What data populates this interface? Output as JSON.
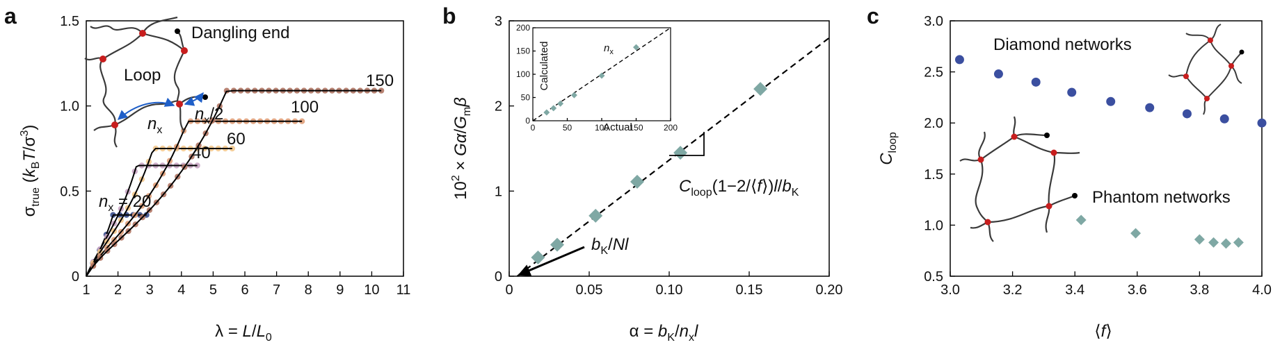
{
  "panels": {
    "a": {
      "letter": "a"
    },
    "b": {
      "letter": "b"
    },
    "c": {
      "letter": "c"
    }
  },
  "chart_data": [
    {
      "type": "line",
      "panel": "a",
      "xlabel": "λ = L/L0",
      "ylabel": "σtrue (kBT/σ³)",
      "xlim": [
        1,
        11
      ],
      "ylim": [
        0,
        1.5
      ],
      "x_ticks": [
        "1",
        "2",
        "3",
        "4",
        "5",
        "6",
        "7",
        "8",
        "9",
        "10",
        "11"
      ],
      "y_ticks": [
        "0",
        "0.5",
        "1.0",
        "1.5"
      ],
      "grid": false,
      "series_labels": [
        "nx = 20",
        "40",
        "60",
        "100",
        "150"
      ],
      "series": [
        {
          "label": "nx = 20",
          "color": "#3a4e8c",
          "lambda_max": 2.9,
          "sigma_max": 0.36
        },
        {
          "label": "40",
          "color": "#c9a6c4",
          "lambda_max": 4.5,
          "sigma_max": 0.65
        },
        {
          "label": "60",
          "color": "#f2c88e",
          "lambda_max": 5.6,
          "sigma_max": 0.75
        },
        {
          "label": "100",
          "color": "#e0a07a",
          "lambda_max": 7.8,
          "sigma_max": 0.91
        },
        {
          "label": "150",
          "color": "#b07664",
          "lambda_max": 10.3,
          "sigma_max": 1.09
        }
      ],
      "inset_labels": {
        "dangling": "Dangling end",
        "loop": "Loop",
        "nx": "nx",
        "nx_half": "nx/2"
      }
    },
    {
      "type": "scatter",
      "panel": "b",
      "xlabel": "α = bK/nxl",
      "ylabel": "10² × Gα/Gmβ",
      "xlim": [
        0,
        0.2
      ],
      "ylim": [
        0,
        3
      ],
      "x_ticks": [
        "0",
        "0.05",
        "0.10",
        "0.15",
        "0.20"
      ],
      "y_ticks": [
        "0",
        "1",
        "2",
        "3"
      ],
      "points": [
        {
          "x": 0.018,
          "y": 0.22
        },
        {
          "x": 0.03,
          "y": 0.37
        },
        {
          "x": 0.054,
          "y": 0.71
        },
        {
          "x": 0.08,
          "y": 1.11
        },
        {
          "x": 0.107,
          "y": 1.45
        },
        {
          "x": 0.157,
          "y": 2.2
        }
      ],
      "fit_line": {
        "x": [
          0.005,
          0.2
        ],
        "y": [
          0,
          2.8
        ]
      },
      "annotations": {
        "slope": "Cloop(1−2/⟨f⟩)l/bK",
        "intercept": "bK/Nl"
      },
      "inset": {
        "xlabel": "Actual",
        "ylabel": "Calculated",
        "label": "nx",
        "xlim": [
          0,
          200
        ],
        "ylim": [
          0,
          200
        ],
        "x_ticks": [
          "0",
          "50",
          "100",
          "150",
          "200"
        ],
        "y_ticks": [
          "0",
          "50",
          "100",
          "150",
          "200"
        ],
        "points": [
          {
            "x": 20,
            "y": 18
          },
          {
            "x": 30,
            "y": 27
          },
          {
            "x": 40,
            "y": 37
          },
          {
            "x": 60,
            "y": 55
          },
          {
            "x": 100,
            "y": 97
          },
          {
            "x": 150,
            "y": 158
          }
        ]
      }
    },
    {
      "type": "scatter",
      "panel": "c",
      "xlabel": "⟨f⟩",
      "ylabel": "Cloop",
      "xlim": [
        3.0,
        4.0
      ],
      "ylim": [
        0.5,
        3.0
      ],
      "x_ticks": [
        "3.0",
        "3.2",
        "3.4",
        "3.6",
        "3.8",
        "4.0"
      ],
      "y_ticks": [
        "0.5",
        "1.0",
        "1.5",
        "2.0",
        "2.5",
        "3.0"
      ],
      "series": [
        {
          "name": "Diamond networks",
          "marker": "circle",
          "color": "#3b4fa0",
          "points": [
            {
              "x": 3.03,
              "y": 2.62
            },
            {
              "x": 3.155,
              "y": 2.48
            },
            {
              "x": 3.275,
              "y": 2.4
            },
            {
              "x": 3.39,
              "y": 2.3
            },
            {
              "x": 3.515,
              "y": 2.21
            },
            {
              "x": 3.64,
              "y": 2.15
            },
            {
              "x": 3.76,
              "y": 2.09
            },
            {
              "x": 3.88,
              "y": 2.04
            },
            {
              "x": 4.0,
              "y": 2.0
            }
          ]
        },
        {
          "name": "Phantom networks",
          "marker": "diamond",
          "color": "#7fa8a4",
          "points": [
            {
              "x": 3.42,
              "y": 1.05
            },
            {
              "x": 3.595,
              "y": 0.92
            },
            {
              "x": 3.8,
              "y": 0.86
            },
            {
              "x": 3.845,
              "y": 0.83
            },
            {
              "x": 3.885,
              "y": 0.82
            },
            {
              "x": 3.925,
              "y": 0.83
            }
          ]
        }
      ]
    }
  ]
}
